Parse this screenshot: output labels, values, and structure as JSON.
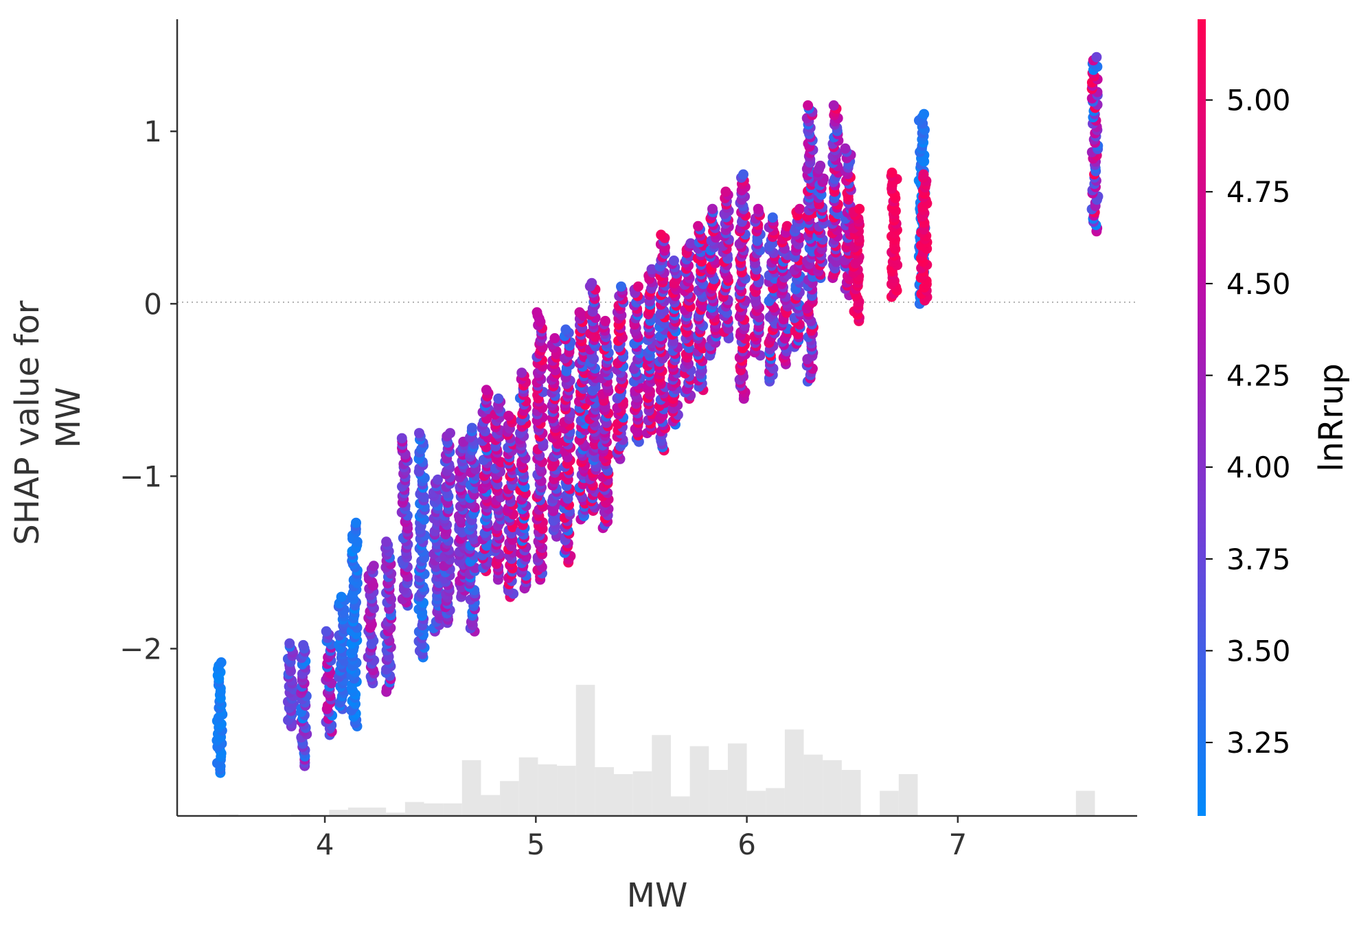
{
  "chart_data": {
    "type": "scatter",
    "title": "",
    "xlabel": "MW",
    "ylabel_lines": [
      "SHAP value for",
      "MW"
    ],
    "xlim": [
      3.3,
      7.85
    ],
    "ylim": [
      -2.97,
      1.65
    ],
    "xticks": [
      {
        "value": 4,
        "label": "4"
      },
      {
        "value": 5,
        "label": "5"
      },
      {
        "value": 6,
        "label": "6"
      },
      {
        "value": 7,
        "label": "7"
      }
    ],
    "yticks": [
      {
        "value": 1,
        "label": "1"
      },
      {
        "value": 0,
        "label": "0"
      },
      {
        "value": -1,
        "label": "−1"
      },
      {
        "value": -2,
        "label": "−2"
      }
    ],
    "reference_line_y": 0,
    "grid": false,
    "colorbar": {
      "title": "lnRrup",
      "range": [
        3.05,
        5.22
      ],
      "ticks": [
        {
          "value": 3.25,
          "label": "3.25"
        },
        {
          "value": 3.5,
          "label": "3.50"
        },
        {
          "value": 3.75,
          "label": "3.75"
        },
        {
          "value": 4.0,
          "label": "4.00"
        },
        {
          "value": 4.25,
          "label": "4.25"
        },
        {
          "value": 4.5,
          "label": "4.50"
        },
        {
          "value": 4.75,
          "label": "4.75"
        },
        {
          "value": 5.0,
          "label": "5.00"
        }
      ],
      "colors": [
        "#008afb",
        "#7040d8",
        "#c00aa6",
        "#ff0052"
      ]
    },
    "histogram_color": "#e6e6e6",
    "histogram": [
      {
        "x0": 3.5,
        "x1": 3.59,
        "value": 0.005
      },
      {
        "x0": 3.84,
        "x1": 3.93,
        "value": 0.005
      },
      {
        "x0": 4.02,
        "x1": 4.11,
        "value": 0.022
      },
      {
        "x0": 4.11,
        "x1": 4.2,
        "value": 0.03
      },
      {
        "x0": 4.2,
        "x1": 4.29,
        "value": 0.03
      },
      {
        "x0": 4.29,
        "x1": 4.38,
        "value": 0.012
      },
      {
        "x0": 4.38,
        "x1": 4.47,
        "value": 0.05
      },
      {
        "x0": 4.47,
        "x1": 4.56,
        "value": 0.045
      },
      {
        "x0": 4.56,
        "x1": 4.65,
        "value": 0.045
      },
      {
        "x0": 4.65,
        "x1": 4.74,
        "value": 0.2
      },
      {
        "x0": 4.74,
        "x1": 4.83,
        "value": 0.075
      },
      {
        "x0": 4.83,
        "x1": 4.92,
        "value": 0.125
      },
      {
        "x0": 4.92,
        "x1": 5.01,
        "value": 0.21
      },
      {
        "x0": 5.01,
        "x1": 5.1,
        "value": 0.185
      },
      {
        "x0": 5.1,
        "x1": 5.19,
        "value": 0.18
      },
      {
        "x0": 5.19,
        "x1": 5.28,
        "value": 0.47
      },
      {
        "x0": 5.28,
        "x1": 5.37,
        "value": 0.175
      },
      {
        "x0": 5.37,
        "x1": 5.46,
        "value": 0.15
      },
      {
        "x0": 5.46,
        "x1": 5.55,
        "value": 0.16
      },
      {
        "x0": 5.55,
        "x1": 5.64,
        "value": 0.29
      },
      {
        "x0": 5.64,
        "x1": 5.73,
        "value": 0.07
      },
      {
        "x0": 5.73,
        "x1": 5.82,
        "value": 0.25
      },
      {
        "x0": 5.82,
        "x1": 5.91,
        "value": 0.165
      },
      {
        "x0": 5.91,
        "x1": 6.0,
        "value": 0.26
      },
      {
        "x0": 6.0,
        "x1": 6.09,
        "value": 0.09
      },
      {
        "x0": 6.09,
        "x1": 6.18,
        "value": 0.1
      },
      {
        "x0": 6.18,
        "x1": 6.27,
        "value": 0.31
      },
      {
        "x0": 6.27,
        "x1": 6.36,
        "value": 0.22
      },
      {
        "x0": 6.36,
        "x1": 6.45,
        "value": 0.2
      },
      {
        "x0": 6.45,
        "x1": 6.54,
        "value": 0.165
      },
      {
        "x0": 6.63,
        "x1": 6.72,
        "value": 0.09
      },
      {
        "x0": 6.72,
        "x1": 6.81,
        "value": 0.15
      },
      {
        "x0": 7.56,
        "x1": 7.65,
        "value": 0.09
      }
    ],
    "histogram_ylim": [
      0,
      1.0
    ],
    "clusters": [
      {
        "x": 3.5,
        "ymin": -2.72,
        "ymax": -2.08,
        "cmin": 3.08,
        "cmax": 3.3
      },
      {
        "x": 3.84,
        "ymin": -2.45,
        "ymax": -1.97,
        "cmin": 3.3,
        "cmax": 4.05
      },
      {
        "x": 3.9,
        "ymin": -2.68,
        "ymax": -1.98,
        "cmin": 3.1,
        "cmax": 4.4
      },
      {
        "x": 4.02,
        "ymin": -2.5,
        "ymax": -1.9,
        "cmin": 3.1,
        "cmax": 4.7
      },
      {
        "x": 4.08,
        "ymin": -2.35,
        "ymax": -1.7,
        "cmin": 3.15,
        "cmax": 3.6
      },
      {
        "x": 4.14,
        "ymin": -2.45,
        "ymax": -1.27,
        "cmin": 3.08,
        "cmax": 3.45
      },
      {
        "x": 4.22,
        "ymin": -2.2,
        "ymax": -1.52,
        "cmin": 3.6,
        "cmax": 4.6
      },
      {
        "x": 4.3,
        "ymin": -2.25,
        "ymax": -1.38,
        "cmin": 3.3,
        "cmax": 4.5
      },
      {
        "x": 4.38,
        "ymin": -1.75,
        "ymax": -0.78,
        "cmin": 3.5,
        "cmax": 4.6
      },
      {
        "x": 4.46,
        "ymin": -2.05,
        "ymax": -0.75,
        "cmin": 3.15,
        "cmax": 3.9
      },
      {
        "x": 4.53,
        "ymin": -1.9,
        "ymax": -1.02,
        "cmin": 3.3,
        "cmax": 4.2
      },
      {
        "x": 4.58,
        "ymin": -1.85,
        "ymax": -0.75,
        "cmin": 3.4,
        "cmax": 4.5
      },
      {
        "x": 4.65,
        "ymin": -1.7,
        "ymax": -0.8,
        "cmin": 3.6,
        "cmax": 4.6
      },
      {
        "x": 4.7,
        "ymin": -1.9,
        "ymax": -0.72,
        "cmin": 3.2,
        "cmax": 4.4
      },
      {
        "x": 4.76,
        "ymin": -1.55,
        "ymax": -0.5,
        "cmin": 3.2,
        "cmax": 5.1
      },
      {
        "x": 4.82,
        "ymin": -1.6,
        "ymax": -0.55,
        "cmin": 3.6,
        "cmax": 5.1
      },
      {
        "x": 4.88,
        "ymin": -1.7,
        "ymax": -0.65,
        "cmin": 3.6,
        "cmax": 5.15
      },
      {
        "x": 4.94,
        "ymin": -1.65,
        "ymax": -0.4,
        "cmin": 3.2,
        "cmax": 5.2
      },
      {
        "x": 5.02,
        "ymin": -1.6,
        "ymax": -0.05,
        "cmin": 3.5,
        "cmax": 5.2
      },
      {
        "x": 5.09,
        "ymin": -1.35,
        "ymax": -0.2,
        "cmin": 3.5,
        "cmax": 5.1
      },
      {
        "x": 5.15,
        "ymin": -1.5,
        "ymax": -0.15,
        "cmin": 3.3,
        "cmax": 5.15
      },
      {
        "x": 5.22,
        "ymin": -1.25,
        "ymax": -0.05,
        "cmin": 3.2,
        "cmax": 5.2
      },
      {
        "x": 5.27,
        "ymin": -1.2,
        "ymax": 0.12,
        "cmin": 3.3,
        "cmax": 5.15
      },
      {
        "x": 5.33,
        "ymin": -1.3,
        "ymax": -0.1,
        "cmin": 3.4,
        "cmax": 5.2
      },
      {
        "x": 5.4,
        "ymin": -0.9,
        "ymax": 0.1,
        "cmin": 3.3,
        "cmax": 5.2
      },
      {
        "x": 5.48,
        "ymin": -0.8,
        "ymax": 0.1,
        "cmin": 3.3,
        "cmax": 5.2
      },
      {
        "x": 5.54,
        "ymin": -0.75,
        "ymax": 0.2,
        "cmin": 3.3,
        "cmax": 5.2
      },
      {
        "x": 5.6,
        "ymin": -0.85,
        "ymax": 0.4,
        "cmin": 3.3,
        "cmax": 5.2
      },
      {
        "x": 5.66,
        "ymin": -0.7,
        "ymax": 0.25,
        "cmin": 3.2,
        "cmax": 5.2
      },
      {
        "x": 5.72,
        "ymin": -0.55,
        "ymax": 0.35,
        "cmin": 3.4,
        "cmax": 5.2
      },
      {
        "x": 5.78,
        "ymin": -0.5,
        "ymax": 0.45,
        "cmin": 3.3,
        "cmax": 5.2
      },
      {
        "x": 5.84,
        "ymin": -0.3,
        "ymax": 0.55,
        "cmin": 3.2,
        "cmax": 5.2
      },
      {
        "x": 5.9,
        "ymin": -0.2,
        "ymax": 0.65,
        "cmin": 3.5,
        "cmax": 5.2
      },
      {
        "x": 5.98,
        "ymin": -0.55,
        "ymax": 0.75,
        "cmin": 3.5,
        "cmax": 5.2
      },
      {
        "x": 6.05,
        "ymin": -0.3,
        "ymax": 0.55,
        "cmin": 3.3,
        "cmax": 5.2
      },
      {
        "x": 6.12,
        "ymin": -0.45,
        "ymax": 0.5,
        "cmin": 3.3,
        "cmax": 5.2
      },
      {
        "x": 6.18,
        "ymin": -0.35,
        "ymax": 0.45,
        "cmin": 3.3,
        "cmax": 5.2
      },
      {
        "x": 6.24,
        "ymin": -0.25,
        "ymax": 0.55,
        "cmin": 3.3,
        "cmax": 5.2
      },
      {
        "x": 6.3,
        "ymin": -0.45,
        "ymax": 1.15,
        "cmin": 3.3,
        "cmax": 5.2
      },
      {
        "x": 6.35,
        "ymin": 0.15,
        "ymax": 0.8,
        "cmin": 3.3,
        "cmax": 5.2
      },
      {
        "x": 6.42,
        "ymin": 0.15,
        "ymax": 1.15,
        "cmin": 3.3,
        "cmax": 5.2
      },
      {
        "x": 6.48,
        "ymin": 0.05,
        "ymax": 0.9,
        "cmin": 3.4,
        "cmax": 5.2
      },
      {
        "x": 6.52,
        "ymin": -0.1,
        "ymax": 0.55,
        "cmin": 4.8,
        "cmax": 5.2
      },
      {
        "x": 6.7,
        "ymin": 0.04,
        "ymax": 0.76,
        "cmin": 4.9,
        "cmax": 5.2
      },
      {
        "x": 6.83,
        "ymin": 0.0,
        "ymax": 1.1,
        "cmin": 3.1,
        "cmax": 3.4
      },
      {
        "x": 6.84,
        "ymin": 0.02,
        "ymax": 0.75,
        "cmin": 4.9,
        "cmax": 5.2
      },
      {
        "x": 7.65,
        "ymin": 0.42,
        "ymax": 1.43,
        "cmin": 3.1,
        "cmax": 5.2
      }
    ]
  }
}
